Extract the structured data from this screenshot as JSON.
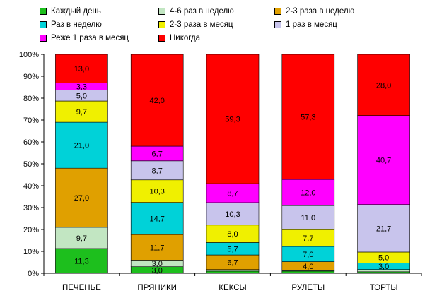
{
  "chart_data": {
    "type": "bar",
    "stacked": true,
    "normalized": true,
    "categories": [
      "ПЕЧЕНЬЕ",
      "ПРЯНИКИ",
      "КЕКСЫ",
      "РУЛЕТЫ",
      "ТОРТЫ"
    ],
    "ylim": [
      0,
      100
    ],
    "yticks": [
      "0%",
      "10%",
      "20%",
      "30%",
      "40%",
      "50%",
      "60%",
      "70%",
      "80%",
      "90%",
      "100%"
    ],
    "grid": false,
    "legend_position": "top",
    "series": [
      {
        "name": "Каждый день",
        "color": "#1DBF1D",
        "values": [
          11.3,
          3.0,
          1.0,
          1.0,
          0.7
        ],
        "labels": [
          "11,3",
          "3,0",
          "",
          "",
          ""
        ]
      },
      {
        "name": "4-6 раз в неделю",
        "color": "#C2E6C2",
        "values": [
          9.7,
          3.0,
          0.7,
          0.3,
          0.7
        ],
        "labels": [
          "9,7",
          "3,0",
          "",
          "",
          ""
        ]
      },
      {
        "name": "2-3 раза в неделю",
        "color": "#E0A000",
        "values": [
          27.0,
          11.7,
          6.7,
          4.0,
          0.3
        ],
        "labels": [
          "27,0",
          "11,7",
          "6,7",
          "4,0",
          ""
        ]
      },
      {
        "name": "Раз в неделю",
        "color": "#00D2D8",
        "values": [
          21.0,
          14.7,
          5.7,
          7.0,
          3.0
        ],
        "labels": [
          "21,0",
          "14,7",
          "5,7",
          "7,0",
          "3,0"
        ]
      },
      {
        "name": "2-3 раза в месяц",
        "color": "#F0F000",
        "values": [
          9.7,
          10.3,
          8.0,
          7.7,
          5.0
        ],
        "labels": [
          "9,7",
          "10,3",
          "8,0",
          "7,7",
          "5,0"
        ]
      },
      {
        "name": "1 раз в месяц",
        "color": "#C8C4EC",
        "values": [
          5.0,
          8.7,
          10.3,
          11.0,
          21.7
        ],
        "labels": [
          "5,0",
          "8,7",
          "10,3",
          "11,0",
          "21,7"
        ]
      },
      {
        "name": "Реже 1 раза в месяц",
        "color": "#FF00FF",
        "values": [
          3.3,
          6.7,
          8.7,
          12.0,
          40.7
        ],
        "labels": [
          "3,3",
          "6,7",
          "8,7",
          "12,0",
          "40,7"
        ]
      },
      {
        "name": "Никогда",
        "color": "#FF0000",
        "values": [
          13.0,
          42.0,
          59.3,
          57.3,
          28.0
        ],
        "labels": [
          "13,0",
          "42,0",
          "59,3",
          "57,3",
          "28,0"
        ]
      }
    ]
  }
}
